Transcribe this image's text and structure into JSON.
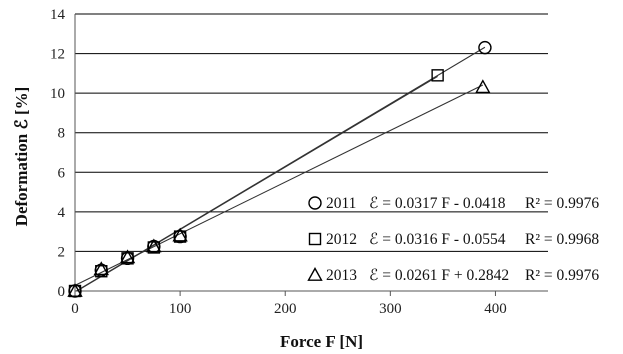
{
  "chart_data": {
    "type": "scatter",
    "xlabel": "Force F [N]",
    "ylabel": "Deformation ℰ [%]",
    "xlim": [
      0,
      450
    ],
    "ylim": [
      0,
      14
    ],
    "x_ticks": [
      0,
      100,
      200,
      300,
      400
    ],
    "y_ticks": [
      0,
      2,
      4,
      6,
      8,
      10,
      12,
      14
    ],
    "grid": "horizontal",
    "legend_position": "bottom-right",
    "series": [
      {
        "name": "2011",
        "marker": "circle",
        "equation": "ℰ = 0.0317 F - 0.0418",
        "r2": "R² = 0.9976",
        "slope": 0.0317,
        "intercept": -0.0418,
        "points": [
          [
            0,
            0.0
          ],
          [
            25,
            1.05
          ],
          [
            50,
            1.65
          ],
          [
            75,
            2.25
          ],
          [
            100,
            2.75
          ],
          [
            390,
            12.3
          ]
        ]
      },
      {
        "name": "2012",
        "marker": "square",
        "equation": "ℰ = 0.0316 F - 0.0554",
        "r2": "R² = 0.9968",
        "slope": 0.0316,
        "intercept": -0.0554,
        "points": [
          [
            0,
            0.0
          ],
          [
            25,
            1.0
          ],
          [
            50,
            1.65
          ],
          [
            75,
            2.2
          ],
          [
            100,
            2.75
          ],
          [
            345,
            10.9
          ]
        ]
      },
      {
        "name": "2013",
        "marker": "triangle",
        "equation": "ℰ = 0.0261 F + 0.2842",
        "r2": "R² = 0.9976",
        "slope": 0.0261,
        "intercept": 0.2842,
        "points": [
          [
            0,
            0.0
          ],
          [
            25,
            1.1
          ],
          [
            50,
            1.7
          ],
          [
            75,
            2.25
          ],
          [
            100,
            2.8
          ],
          [
            388,
            10.3
          ]
        ]
      }
    ]
  }
}
